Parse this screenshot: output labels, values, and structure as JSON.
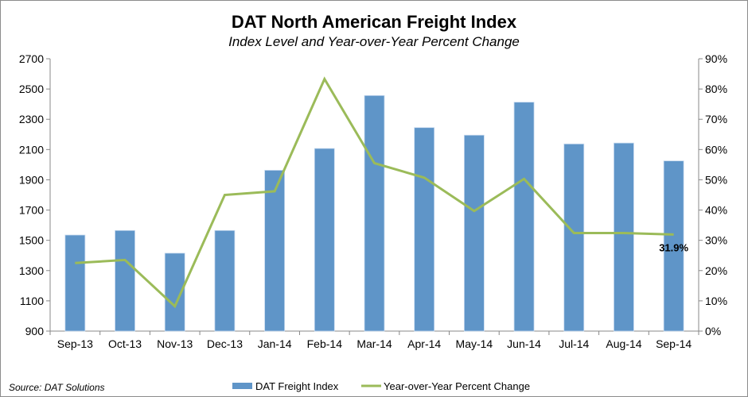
{
  "chart_data": {
    "type": "bar",
    "title": "DAT North American Freight Index",
    "subtitle": "Index Level and Year-over-Year Percent Change",
    "source": "Source: DAT Solutions",
    "categories": [
      "Sep-13",
      "Oct-13",
      "Nov-13",
      "Dec-13",
      "Jan-14",
      "Feb-14",
      "Mar-14",
      "Apr-14",
      "May-14",
      "Jun-14",
      "Jul-14",
      "Aug-14",
      "Sep-14"
    ],
    "series": [
      {
        "name": "DAT Freight Index",
        "type": "bar",
        "axis": "left",
        "color": "#5f95c8",
        "values": [
          1535,
          1565,
          1415,
          1565,
          1963,
          2107,
          2457,
          2245,
          2195,
          2413,
          2137,
          2143,
          2025
        ]
      },
      {
        "name": "Year-over-Year Percent Change",
        "type": "line",
        "axis": "right",
        "color": "#9bbb59",
        "values": [
          22.5,
          23.5,
          8.2,
          45.0,
          46.2,
          83.3,
          55.5,
          50.7,
          39.7,
          50.3,
          32.4,
          32.4,
          31.9
        ]
      }
    ],
    "y_left": {
      "lim": [
        900,
        2700
      ],
      "ticks": [
        "900",
        "1100",
        "1300",
        "1500",
        "1700",
        "1900",
        "2100",
        "2300",
        "2500",
        "2700"
      ]
    },
    "y_right": {
      "lim": [
        0,
        90
      ],
      "ticks": [
        "0%",
        "10%",
        "20%",
        "30%",
        "40%",
        "50%",
        "60%",
        "70%",
        "80%",
        "90%"
      ]
    },
    "annotation": "31.9%",
    "grid": false,
    "legend": "bottom"
  }
}
